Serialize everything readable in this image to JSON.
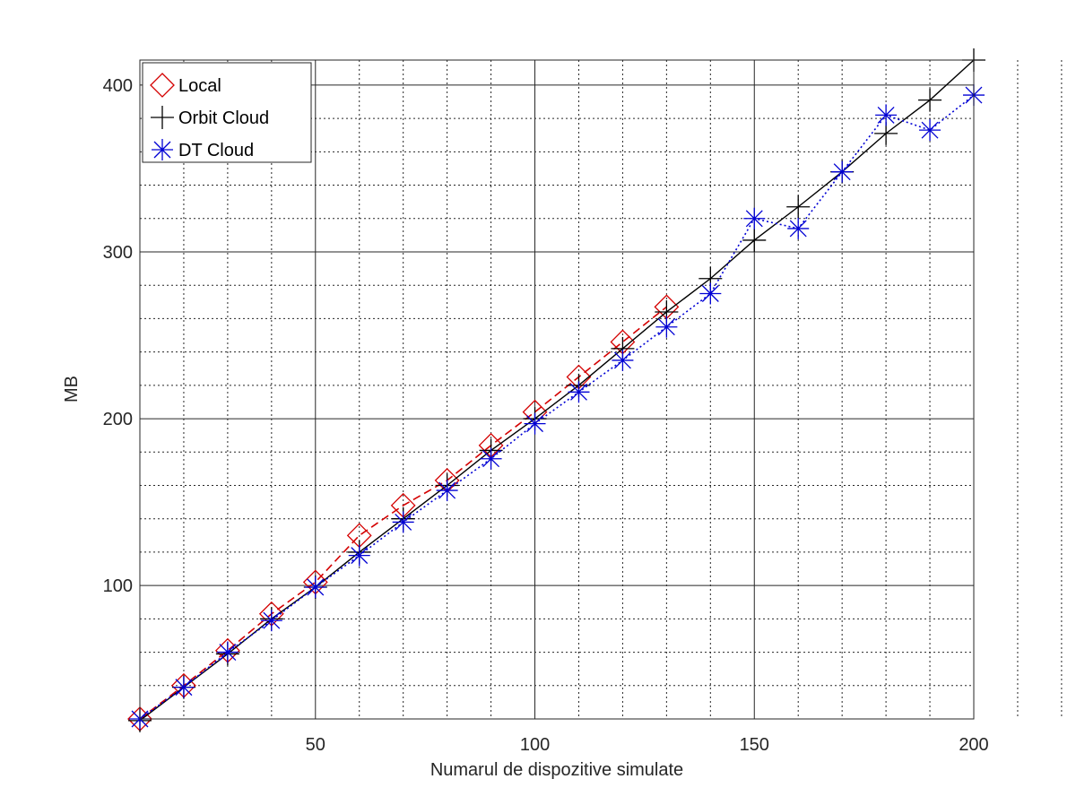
{
  "chart_data": {
    "type": "line",
    "title": "",
    "xlabel": "Numarul de dispozitive simulate",
    "ylabel": "MB",
    "xlim": [
      10,
      200
    ],
    "ylim": [
      20,
      415
    ],
    "x_ticks": [
      50,
      100,
      150,
      200
    ],
    "y_ticks": [
      100,
      200,
      300,
      400
    ],
    "x_tick_labels": [
      "50",
      "100",
      "150",
      "200"
    ],
    "y_tick_labels": [
      "100",
      "200",
      "300",
      "400"
    ],
    "grid": "on (major solid, minor dotted)",
    "legend_position": "top-left",
    "series": [
      {
        "name": "Local",
        "color": "#d40000",
        "line_style": "dashed",
        "marker": "diamond",
        "x": [
          10,
          20,
          30,
          40,
          50,
          60,
          70,
          80,
          90,
          100,
          110,
          120,
          130
        ],
        "y": [
          20,
          40,
          61,
          83,
          102,
          130,
          148,
          163,
          184,
          204,
          225,
          246,
          267
        ]
      },
      {
        "name": "Orbit Cloud",
        "color": "#000000",
        "line_style": "solid",
        "marker": "plus",
        "x": [
          10,
          20,
          30,
          40,
          50,
          60,
          70,
          80,
          90,
          100,
          110,
          120,
          130,
          140,
          150,
          160,
          170,
          180,
          190,
          200
        ],
        "y": [
          19,
          39,
          59,
          80,
          99,
          120,
          140,
          160,
          181,
          200,
          220,
          242,
          264,
          284,
          307,
          327,
          348,
          371,
          391,
          415
        ]
      },
      {
        "name": "DT Cloud",
        "color": "#0000d4",
        "line_style": "dotted",
        "marker": "asterisk",
        "x": [
          10,
          20,
          30,
          40,
          50,
          60,
          70,
          80,
          90,
          100,
          110,
          120,
          130,
          140,
          150,
          160,
          170,
          180,
          190,
          200
        ],
        "y": [
          20,
          39,
          60,
          79,
          99,
          118,
          138,
          157,
          176,
          197,
          216,
          235,
          255,
          275,
          320,
          314,
          348,
          382,
          373,
          394
        ]
      }
    ]
  }
}
